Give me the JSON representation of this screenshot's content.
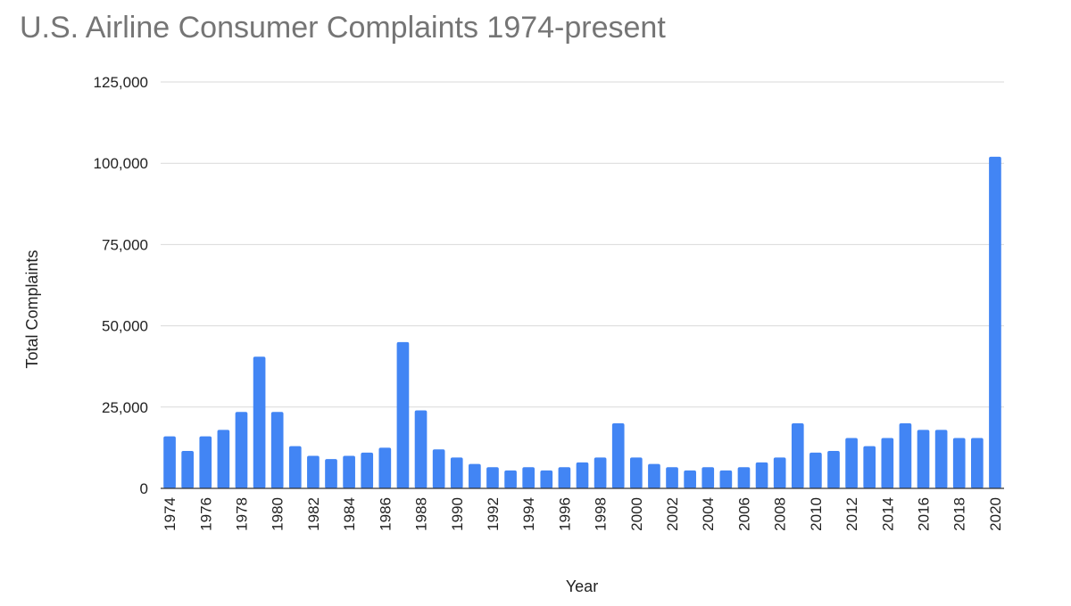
{
  "chart_data": {
    "type": "bar",
    "title": "U.S. Airline Consumer Complaints 1974-present",
    "xlabel": "Year",
    "ylabel": "Total Complaints",
    "ylim": [
      0,
      125000
    ],
    "y_ticks": [
      0,
      25000,
      50000,
      75000,
      100000,
      125000
    ],
    "y_tick_labels": [
      "0",
      "25,000",
      "50,000",
      "75,000",
      "100,000",
      "125,000"
    ],
    "grid": true,
    "bar_color": "#4285f4",
    "categories": [
      "1974",
      "1975",
      "1976",
      "1977",
      "1978",
      "1979",
      "1980",
      "1981",
      "1982",
      "1983",
      "1984",
      "1985",
      "1986",
      "1987",
      "1988",
      "1989",
      "1990",
      "1991",
      "1992",
      "1993",
      "1994",
      "1995",
      "1996",
      "1997",
      "1998",
      "1999",
      "2000",
      "2001",
      "2002",
      "2003",
      "2004",
      "2005",
      "2006",
      "2007",
      "2008",
      "2009",
      "2010",
      "2011",
      "2012",
      "2013",
      "2014",
      "2015",
      "2016",
      "2017",
      "2018",
      "2019",
      "2020"
    ],
    "x_tick_labels": [
      "1974",
      "1976",
      "1978",
      "1980",
      "1982",
      "1984",
      "1986",
      "1988",
      "1990",
      "1992",
      "1994",
      "1996",
      "1998",
      "2000",
      "2002",
      "2004",
      "2006",
      "2008",
      "2010",
      "2012",
      "2014",
      "2016",
      "2018",
      "2020"
    ],
    "values": [
      16000,
      11500,
      16000,
      18000,
      23500,
      40500,
      23500,
      13000,
      10000,
      9000,
      10000,
      11000,
      12500,
      45000,
      24000,
      12000,
      9500,
      7500,
      6500,
      5500,
      6500,
      5500,
      6500,
      8000,
      9500,
      20000,
      9500,
      7500,
      6500,
      5500,
      6500,
      5500,
      6500,
      8000,
      9500,
      20000,
      11000,
      11500,
      15500,
      13000,
      15500,
      20000,
      18000,
      18000,
      15500,
      15500,
      102000
    ]
  }
}
